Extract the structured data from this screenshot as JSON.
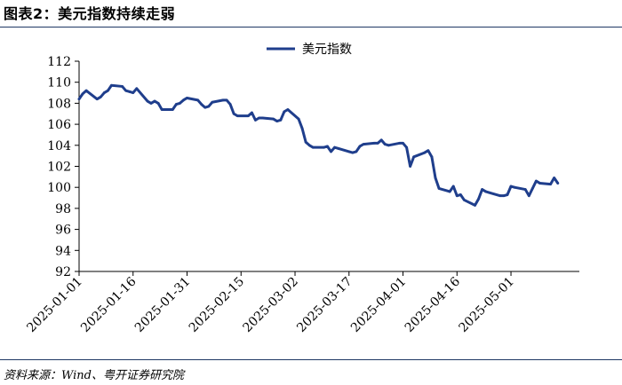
{
  "figure": {
    "title": "图表2：美元指数持续走弱",
    "source": "资料来源：Wind、粤开证券研究院"
  },
  "chart_data": {
    "type": "line",
    "title": "",
    "xlabel": "",
    "ylabel": "",
    "ylim": [
      92,
      112
    ],
    "yticks": [
      92,
      94,
      96,
      98,
      100,
      102,
      104,
      106,
      108,
      110,
      112
    ],
    "xlim": [
      "2025-01-01",
      "2025-05-20"
    ],
    "xticks": [
      "2025-01-01",
      "2025-01-16",
      "2025-01-31",
      "2025-02-15",
      "2025-03-02",
      "2025-03-17",
      "2025-04-01",
      "2025-04-16",
      "2025-05-01"
    ],
    "grid": false,
    "legend": "top-center",
    "colors": {
      "line": "#1f3e8c"
    },
    "series": [
      {
        "name": "美元指数",
        "x": [
          "2025-01-01",
          "2025-01-02",
          "2025-01-03",
          "2025-01-06",
          "2025-01-07",
          "2025-01-08",
          "2025-01-09",
          "2025-01-10",
          "2025-01-13",
          "2025-01-14",
          "2025-01-15",
          "2025-01-16",
          "2025-01-17",
          "2025-01-20",
          "2025-01-21",
          "2025-01-22",
          "2025-01-23",
          "2025-01-24",
          "2025-01-27",
          "2025-01-28",
          "2025-01-29",
          "2025-01-30",
          "2025-01-31",
          "2025-02-03",
          "2025-02-04",
          "2025-02-05",
          "2025-02-06",
          "2025-02-07",
          "2025-02-10",
          "2025-02-11",
          "2025-02-12",
          "2025-02-13",
          "2025-02-14",
          "2025-02-17",
          "2025-02-18",
          "2025-02-19",
          "2025-02-20",
          "2025-02-21",
          "2025-02-24",
          "2025-02-25",
          "2025-02-26",
          "2025-02-27",
          "2025-02-28",
          "2025-03-03",
          "2025-03-04",
          "2025-03-05",
          "2025-03-06",
          "2025-03-07",
          "2025-03-10",
          "2025-03-11",
          "2025-03-12",
          "2025-03-13",
          "2025-03-14",
          "2025-03-17",
          "2025-03-18",
          "2025-03-19",
          "2025-03-20",
          "2025-03-21",
          "2025-03-24",
          "2025-03-25",
          "2025-03-26",
          "2025-03-27",
          "2025-03-28",
          "2025-03-31",
          "2025-04-01",
          "2025-04-02",
          "2025-04-03",
          "2025-04-04",
          "2025-04-07",
          "2025-04-08",
          "2025-04-09",
          "2025-04-10",
          "2025-04-11",
          "2025-04-14",
          "2025-04-15",
          "2025-04-16",
          "2025-04-17",
          "2025-04-18",
          "2025-04-21",
          "2025-04-22",
          "2025-04-23",
          "2025-04-24",
          "2025-04-25",
          "2025-04-28",
          "2025-04-29",
          "2025-04-30",
          "2025-05-01",
          "2025-05-02",
          "2025-05-05",
          "2025-05-06",
          "2025-05-07",
          "2025-05-08",
          "2025-05-09",
          "2025-05-12",
          "2025-05-13",
          "2025-05-14"
        ],
        "values": [
          108.4,
          108.9,
          109.2,
          108.4,
          108.6,
          109.0,
          109.2,
          109.7,
          109.6,
          109.2,
          109.1,
          109.0,
          109.4,
          108.2,
          108.0,
          108.2,
          108.0,
          107.4,
          107.4,
          107.9,
          108.0,
          108.3,
          108.5,
          108.3,
          107.9,
          107.6,
          107.7,
          108.1,
          108.3,
          108.3,
          107.9,
          107.0,
          106.8,
          106.8,
          107.1,
          106.4,
          106.6,
          106.6,
          106.5,
          106.3,
          106.4,
          107.2,
          107.4,
          106.5,
          105.6,
          104.3,
          104.0,
          103.8,
          103.8,
          103.9,
          103.4,
          103.8,
          103.7,
          103.4,
          103.3,
          103.4,
          103.9,
          104.1,
          104.2,
          104.2,
          104.5,
          104.1,
          104.0,
          104.2,
          104.2,
          103.8,
          102.0,
          102.9,
          103.3,
          103.5,
          102.9,
          100.9,
          99.9,
          99.6,
          100.1,
          99.2,
          99.3,
          98.8,
          98.3,
          98.9,
          99.8,
          99.6,
          99.5,
          99.2,
          99.2,
          99.3,
          100.1,
          100.0,
          99.8,
          99.2,
          99.9,
          100.6,
          100.4,
          100.3,
          100.9,
          100.4
        ]
      }
    ]
  }
}
